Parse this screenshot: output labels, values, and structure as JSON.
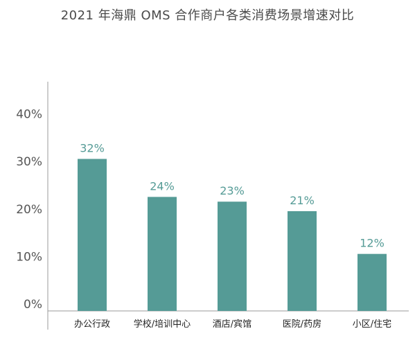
{
  "chart_data": {
    "type": "bar",
    "title": "2021 年海鼎 OMS 合作商户各类消费场景增速对比",
    "categories": [
      "办公行政",
      "学校/培训中心",
      "酒店/宾馆",
      "医院/药房",
      "小区/住宅"
    ],
    "values": [
      32,
      24,
      23,
      21,
      12
    ],
    "data_labels": [
      "32%",
      "24%",
      "23%",
      "21%",
      "12%"
    ],
    "y_ticks": [
      0,
      10,
      20,
      30,
      40
    ],
    "y_tick_labels": [
      "0%",
      "10%",
      "20%",
      "30%",
      "40%"
    ],
    "ylim": [
      0,
      45
    ],
    "xlabel": "",
    "ylabel": "",
    "grid": false,
    "bar_color": "#559b96",
    "label_color": "#559b96"
  }
}
